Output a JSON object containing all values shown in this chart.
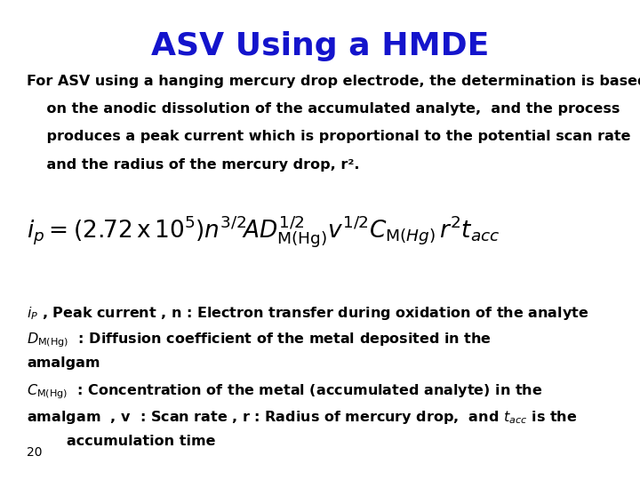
{
  "title": "ASV Using a HMDE",
  "title_color": "#1414cc",
  "title_fontsize": 26,
  "bg_color": "#ffffff",
  "para_line1": "For ASV using a hanging mercury drop electrode, the determination is based",
  "para_line2": "    on the anodic dissolution of the accumulated analyte,  and the process",
  "para_line3": "    produces a peak current which is proportional to the potential scan rate",
  "para_line4": "    and the radius of the mercury drop, r².",
  "formula": "$i_p = \\left(2.72\\,\\mathrm{x}\\,10^5\\right)n^{3/2}\\!AD_{\\mathrm{M(Hg)}}^{1/2}v^{1/2}C_{\\mathrm{M(\\mathit{Hg})}}\\,r^2 t_{acc}$",
  "desc1": "$i_P$ , Peak current , n : Electron transfer during oxidation of the analyte",
  "desc2a": "$D_{\\mathrm{M(Hg)}}$  : Diffusion coefficient of the metal deposited in the",
  "desc2b": "amalgam",
  "desc3a": "$C_{\\mathrm{M(Hg)}}$  : Concentration of the metal (accumulated analyte) in the",
  "desc3b": "amalgam  , v  : Scan rate , r : Radius of mercury drop,  and $t_{acc}$ is the",
  "desc3c": "        accumulation time",
  "page_num": "20",
  "text_fontsize": 11.5,
  "formula_fontsize": 19,
  "desc_fontsize": 11.5
}
